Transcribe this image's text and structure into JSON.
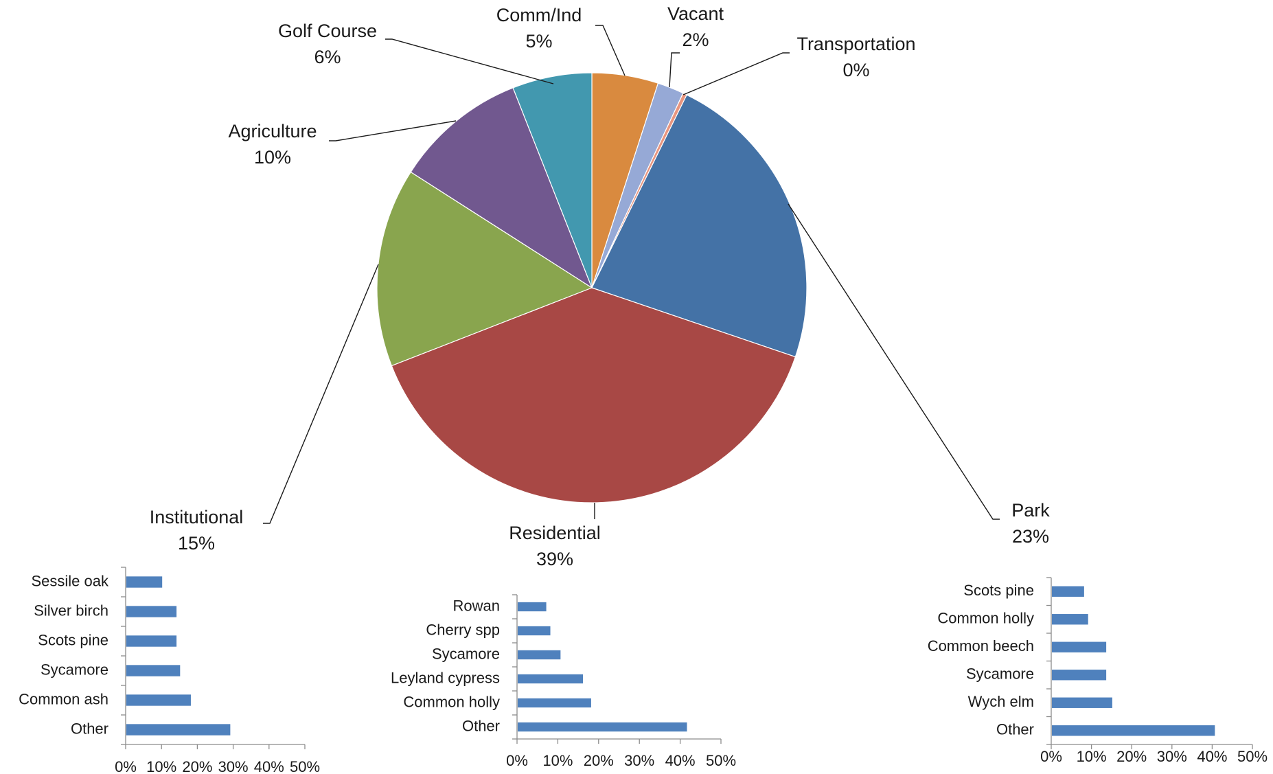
{
  "chart_data": [
    {
      "type": "pie",
      "title": "",
      "slices": [
        {
          "label": "Comm/Ind",
          "pct_label": "5%",
          "value": 5,
          "color": "#d98a3f"
        },
        {
          "label": "Vacant",
          "pct_label": "2%",
          "value": 2,
          "color": "#96a9d6"
        },
        {
          "label": "Transportation",
          "pct_label": "0%",
          "value": 0.3,
          "color": "#e8957f"
        },
        {
          "label": "Park",
          "pct_label": "23%",
          "value": 23,
          "color": "#4472a6"
        },
        {
          "label": "Residential",
          "pct_label": "39%",
          "value": 39,
          "color": "#a84845"
        },
        {
          "label": "Institutional",
          "pct_label": "15%",
          "value": 15,
          "color": "#89a54e"
        },
        {
          "label": "Agriculture",
          "pct_label": "10%",
          "value": 10,
          "color": "#71588f"
        },
        {
          "label": "Golf Course",
          "pct_label": "6%",
          "value": 6,
          "color": "#4298af"
        }
      ]
    },
    {
      "type": "bar",
      "orientation": "horizontal",
      "group": "Institutional",
      "categories": [
        "Sessile oak",
        "Silver birch",
        "Scots pine",
        "Sycamore",
        "Common ash",
        "Other"
      ],
      "values": [
        10,
        14,
        14,
        15,
        18,
        29
      ],
      "xlim": [
        0,
        50
      ],
      "ticks": [
        "0%",
        "10%",
        "20%",
        "30%",
        "40%",
        "50%"
      ],
      "color": "#4f81bd"
    },
    {
      "type": "bar",
      "orientation": "horizontal",
      "group": "Residential",
      "categories": [
        "Rowan",
        "Cherry spp",
        "Sycamore",
        "Leyland cypress",
        "Common holly",
        "Other"
      ],
      "values": [
        7,
        8,
        10.5,
        16,
        18,
        41.5
      ],
      "xlim": [
        0,
        50
      ],
      "ticks": [
        "0%",
        "10%",
        "20%",
        "30%",
        "40%",
        "50%"
      ],
      "color": "#4f81bd"
    },
    {
      "type": "bar",
      "orientation": "horizontal",
      "group": "Park",
      "categories": [
        "Scots pine",
        "Common holly",
        "Common beech",
        "Sycamore",
        "Wych elm",
        "Other"
      ],
      "values": [
        8,
        9,
        13.5,
        13.5,
        15,
        40.5
      ],
      "xlim": [
        0,
        50
      ],
      "ticks": [
        "0%",
        "10%",
        "20%",
        "30%",
        "40%",
        "50%"
      ],
      "color": "#4f81bd"
    }
  ]
}
